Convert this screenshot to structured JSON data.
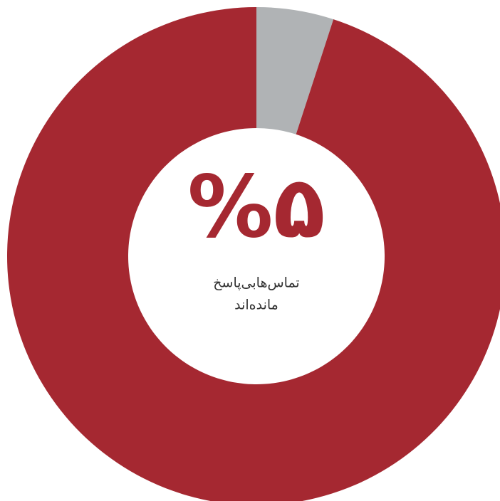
{
  "chart_data": {
    "type": "donut",
    "values": [
      5,
      95
    ],
    "value_labels": [
      "%۵",
      null
    ],
    "colors": [
      "#b0b3b5",
      "#a52831"
    ],
    "annotations": [
      "تماس‌هابی‌پاسخ",
      "مانده‌اند"
    ]
  }
}
